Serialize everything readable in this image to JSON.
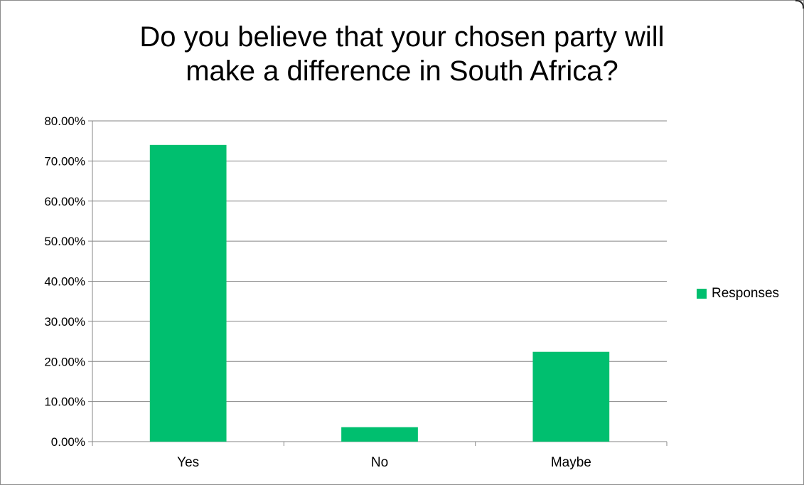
{
  "chart_data": {
    "type": "bar",
    "title_lines": [
      "Do you believe that your chosen party will",
      "make a difference in South Africa?"
    ],
    "categories": [
      "Yes",
      "No",
      "Maybe"
    ],
    "series": [
      {
        "name": "Responses",
        "values": [
          74.0,
          3.6,
          22.4
        ],
        "color": "#00bf6f"
      }
    ],
    "ylim": [
      0,
      80
    ],
    "yticks": [
      "0.00%",
      "10.00%",
      "20.00%",
      "30.00%",
      "40.00%",
      "50.00%",
      "60.00%",
      "70.00%",
      "80.00%"
    ],
    "grid": true,
    "legend": "right",
    "value_unit": "percent"
  }
}
